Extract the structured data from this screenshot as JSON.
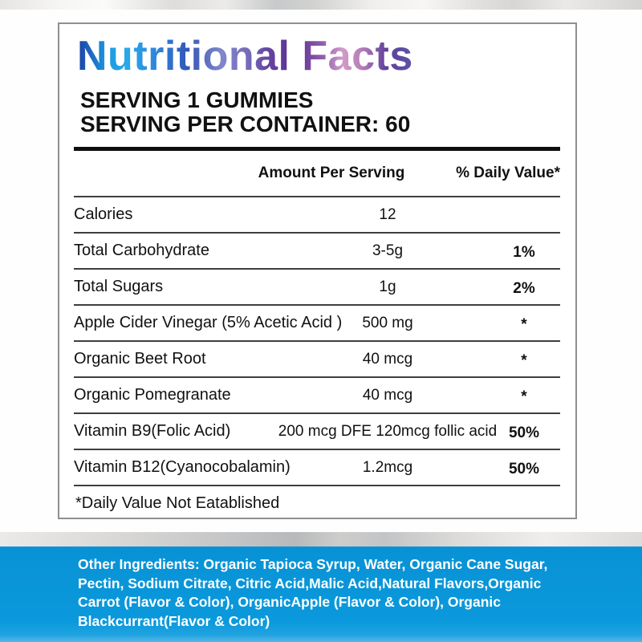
{
  "label": {
    "title": "Nutritional Facts",
    "serving_line1": "SERVING 1 GUMMIES",
    "serving_line2": "SERVING PER CONTAINER: 60",
    "columns": {
      "amount": "Amount Per Serving",
      "daily_value": "% Daily Value*"
    },
    "rows": [
      {
        "name": "Calories",
        "amount": "12",
        "dv": ""
      },
      {
        "name": "Total Carbohydrate",
        "amount": "3-5g",
        "dv": "1%"
      },
      {
        "name": "Total Sugars",
        "amount": "1g",
        "dv": "2%"
      },
      {
        "name": "Apple Cider Vinegar (5% Acetic Acid )",
        "amount": "500 mg",
        "dv": "*"
      },
      {
        "name": "Organic Beet Root",
        "amount": "40 mcg",
        "dv": "*"
      },
      {
        "name": "Organic Pomegranate",
        "amount": "40 mcg",
        "dv": "*"
      },
      {
        "name": "Vitamin B9(Folic Acid)",
        "amount": "200 mcg DFE 120mcg follic acid",
        "dv": "50%"
      },
      {
        "name": "Vitamin B12(Cyanocobalamin)",
        "amount": "1.2mcg",
        "dv": "50%"
      }
    ],
    "footnote": "*Daily Value Not Eatablished"
  },
  "footer": {
    "lines": [
      "Other Ingredients: Organic Tapioca Syrup, Water, Organic Cane Sugar,",
      "Pectin, Sodium Citrate, Citric Acid,Malic Acid,Natural Flavors,Organic",
      "Carrot (Flavor & Color), OrganicApple (Flavor & Color), Organic",
      "Blackcurrant(Flavor & Color)"
    ]
  },
  "colors": {
    "blue_bar": "#0a99dc",
    "footer_text": "#ffffff",
    "panel_border": "#8f8f8f",
    "divider": "#3e3e3e",
    "title_gradient": [
      "#1e3fa4",
      "#1d9ae2",
      "#3356b8",
      "#5c2f92",
      "#d29cc9",
      "#5a55a6"
    ]
  }
}
